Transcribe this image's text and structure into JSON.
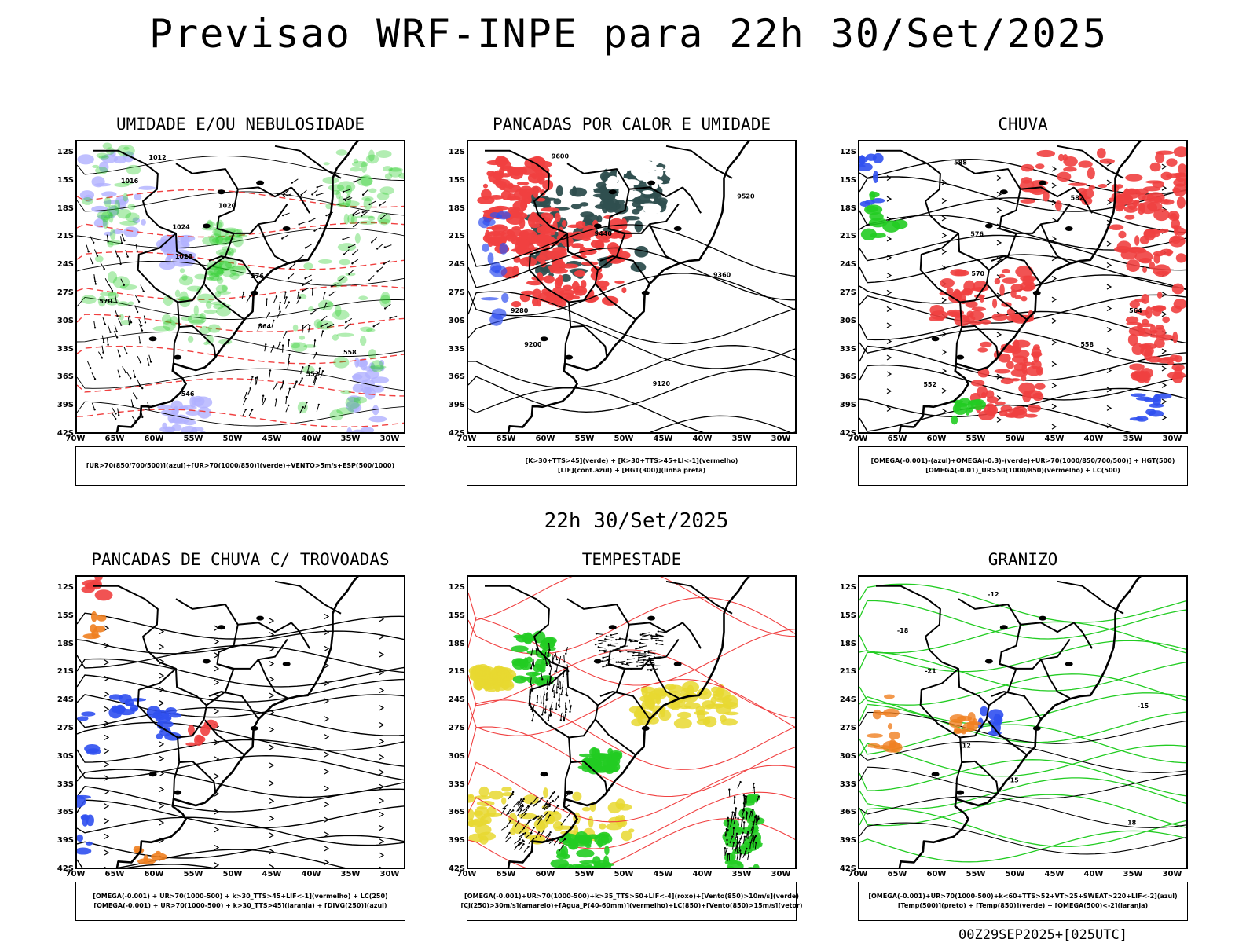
{
  "title": "Previsao WRF-INPE  para 22h 30/Set/2025",
  "mid_title": "22h 30/Set/2025",
  "footer": "00Z29SEP2025+[025UTC]",
  "axes": {
    "lat_labels": [
      "12S",
      "15S",
      "18S",
      "21S",
      "24S",
      "27S",
      "30S",
      "33S",
      "36S",
      "39S",
      "42S"
    ],
    "lon_labels": [
      "70W",
      "65W",
      "60W",
      "55W",
      "50W",
      "45W",
      "40W",
      "35W",
      "30W"
    ]
  },
  "colors": {
    "red": "#f04040",
    "green": "#22cc22",
    "blue": "#3050f0",
    "lavender": "#b0b0ff",
    "yellow": "#e8d830",
    "dark_teal": "#2f4f4f",
    "orange": "#f08020",
    "magenta": "#d020d0"
  },
  "panels": [
    {
      "title": "UMIDADE E/OU NEBULOSIDADE",
      "legend": [
        "[UR>70(850/700/500)](azul)+[UR>70(1000/850)](verde)+VENTO>5m/s+ESP(500/1000)"
      ],
      "contour_labels": [
        "1012",
        "1016",
        "1020",
        "1024",
        "1028",
        "576",
        "570",
        "564",
        "558",
        "552",
        "546"
      ]
    },
    {
      "title": "PANCADAS POR CALOR E UMIDADE",
      "legend": [
        "[K>30+TTS>45](verde) + [K>30+TTS>45+LI<-1](vermelho)",
        "[LIF](cont.azul) + [HGT(300)](linha preta)"
      ],
      "contour_labels": [
        "9600",
        "9520",
        "9440",
        "9360",
        "9280",
        "9200",
        "9120"
      ]
    },
    {
      "title": "CHUVA",
      "legend": [
        "[OMEGA(-0.001)-(azul)+OMEGA(-0.3)-(verde)+UR>70(1000/850/700/500)] + HGT(500)",
        "[OMEGA(-0.01)_UR>50(1000/850)(vermelho) + LC(500)"
      ],
      "contour_labels": [
        "588",
        "582",
        "576",
        "570",
        "564",
        "558",
        "552"
      ]
    },
    {
      "title": "PANCADAS DE CHUVA C/ TROVOADAS",
      "legend": [
        "[OMEGA(-0.001) + UR>70(1000-500) + k>30_TTS>45+LIF<-1](vermelho) + LC(250)",
        "[OMEGA(-0.001) + UR>70(1000-500) + k>30_TTS>45](laranja) + [DIVG(250)](azul)"
      ],
      "contour_labels": []
    },
    {
      "title": "TEMPESTADE",
      "legend": [
        "[OMEGA(-0.001)+UR>70(1000-500)+k>35_TTS>50+LIF<-4](roxo)+[Vento(850)>10m/s](verde)",
        "[CJ(250)>30m/s](amarelo)+[Agua_P(40-60mm)](vermelho)+LC(850)+[Vento(850)>15m/s](vetor)"
      ],
      "contour_labels": []
    },
    {
      "title": "GRANIZO",
      "legend": [
        "[OMEGA(-0.001)+UR>70(1000-500)+k<60+TTS>52+VT>25+SWEAT>220+LIF<-2](azul)",
        "[Temp(500)](preto) + [Temp(850)](verde) + [OMEGA(500)<-2](laranja)"
      ],
      "contour_labels": [
        "-12",
        "-18",
        "-21",
        "-15",
        "12",
        "15",
        "18"
      ]
    }
  ]
}
